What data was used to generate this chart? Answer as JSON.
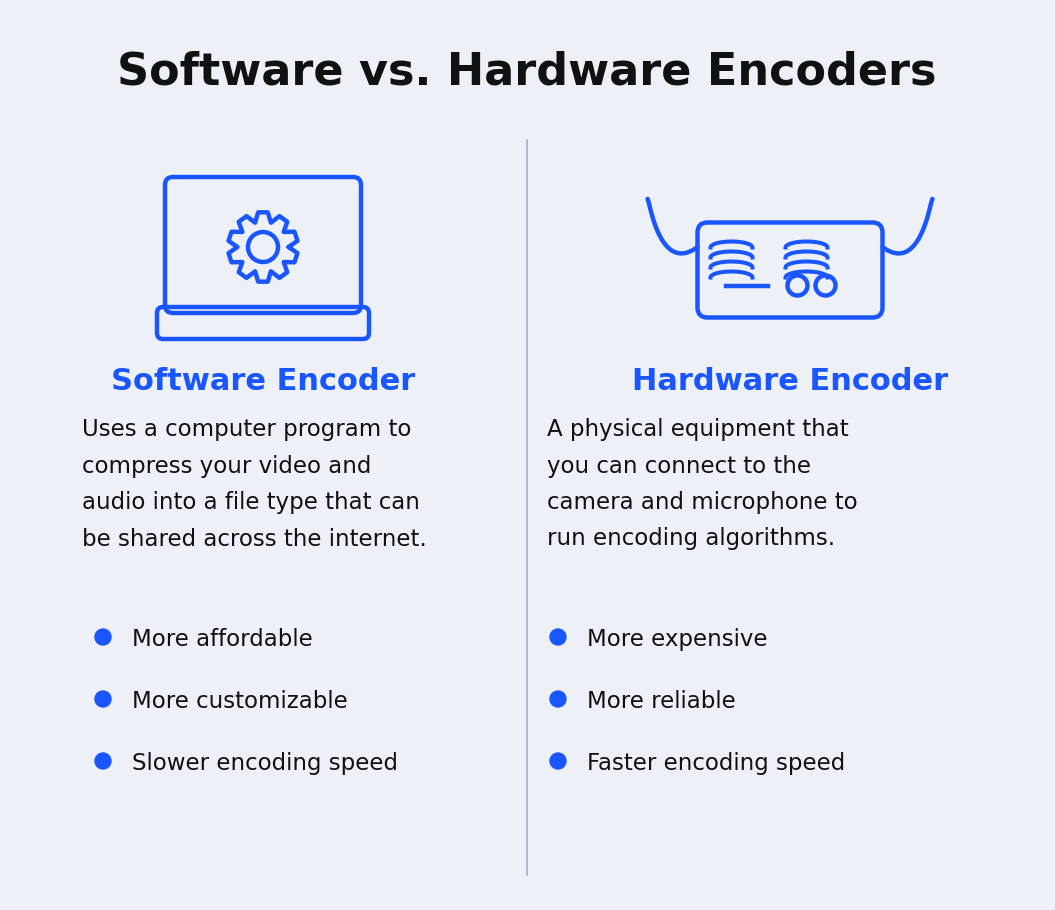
{
  "title": "Software vs. Hardware Encoders",
  "title_fontsize": 32,
  "title_color": "#111111",
  "title_fontweight": "bold",
  "bg_color": "#EEF0F7",
  "blue_color": "#1A56FF",
  "dark_color": "#111111",
  "divider_color": "#AAAACC",
  "left_heading": "Software Encoder",
  "right_heading": "Hardware Encoder",
  "heading_fontsize": 22,
  "left_description": "Uses a computer program to\ncompress your video and\naudio into a file type that can\nbe shared across the internet.",
  "right_description": "A physical equipment that\nyou can connect to the\ncamera and microphone to\nrun encoding algorithms.",
  "desc_fontsize": 16.5,
  "left_bullets": [
    "More affordable",
    "More customizable",
    "Slower encoding speed"
  ],
  "right_bullets": [
    "More expensive",
    "More reliable",
    "Faster encoding speed"
  ],
  "bullet_fontsize": 16.5
}
